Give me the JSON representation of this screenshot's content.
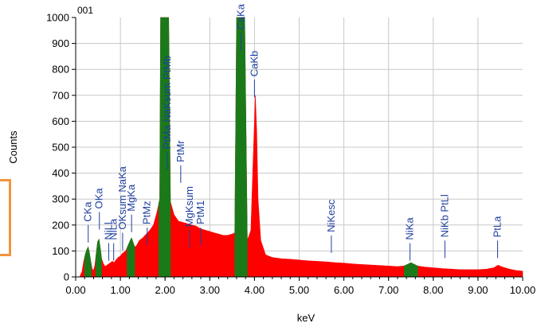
{
  "chart_data": {
    "type": "area",
    "sample_label": "001",
    "xlabel": "keV",
    "ylabel": "Counts",
    "xlim": [
      0,
      10
    ],
    "ylim": [
      0,
      1000
    ],
    "x_ticks": [
      "0.00",
      "1.00",
      "2.00",
      "3.00",
      "4.00",
      "5.00",
      "6.00",
      "7.00",
      "8.00",
      "9.00",
      "10.00"
    ],
    "y_ticks": [
      "0",
      "100",
      "200",
      "300",
      "400",
      "500",
      "600",
      "700",
      "800",
      "900",
      "1000"
    ],
    "spectrum_colors": {
      "background": "#ff0000",
      "identified": "#1a7a1a"
    },
    "spectrum_points": [
      [
        0.1,
        5
      ],
      [
        0.14,
        20
      ],
      [
        0.18,
        60
      ],
      [
        0.22,
        90
      ],
      [
        0.25,
        105
      ],
      [
        0.28,
        115
      ],
      [
        0.31,
        90
      ],
      [
        0.34,
        55
      ],
      [
        0.37,
        30
      ],
      [
        0.4,
        25
      ],
      [
        0.43,
        45
      ],
      [
        0.46,
        90
      ],
      [
        0.49,
        135
      ],
      [
        0.52,
        145
      ],
      [
        0.55,
        110
      ],
      [
        0.58,
        70
      ],
      [
        0.62,
        50
      ],
      [
        0.66,
        40
      ],
      [
        0.7,
        45
      ],
      [
        0.74,
        50
      ],
      [
        0.78,
        55
      ],
      [
        0.82,
        60
      ],
      [
        0.86,
        55
      ],
      [
        0.9,
        65
      ],
      [
        0.95,
        75
      ],
      [
        1.0,
        80
      ],
      [
        1.04,
        90
      ],
      [
        1.08,
        95
      ],
      [
        1.12,
        100
      ],
      [
        1.17,
        120
      ],
      [
        1.22,
        140
      ],
      [
        1.25,
        150
      ],
      [
        1.28,
        135
      ],
      [
        1.32,
        115
      ],
      [
        1.36,
        120
      ],
      [
        1.42,
        140
      ],
      [
        1.5,
        150
      ],
      [
        1.58,
        165
      ],
      [
        1.66,
        180
      ],
      [
        1.74,
        200
      ],
      [
        1.82,
        250
      ],
      [
        1.88,
        300
      ],
      [
        1.9,
        1000
      ],
      [
        2.0,
        1000
      ],
      [
        2.08,
        1000
      ],
      [
        2.12,
        290
      ],
      [
        2.2,
        240
      ],
      [
        2.3,
        215
      ],
      [
        2.4,
        210
      ],
      [
        2.5,
        205
      ],
      [
        2.6,
        200
      ],
      [
        2.7,
        195
      ],
      [
        2.8,
        185
      ],
      [
        2.9,
        180
      ],
      [
        3.0,
        175
      ],
      [
        3.1,
        170
      ],
      [
        3.2,
        165
      ],
      [
        3.3,
        160
      ],
      [
        3.4,
        160
      ],
      [
        3.5,
        165
      ],
      [
        3.56,
        170
      ],
      [
        3.6,
        1000
      ],
      [
        3.7,
        1000
      ],
      [
        3.78,
        1000
      ],
      [
        3.84,
        140
      ],
      [
        3.92,
        180
      ],
      [
        3.96,
        400
      ],
      [
        4.0,
        600
      ],
      [
        4.02,
        700
      ],
      [
        4.05,
        560
      ],
      [
        4.08,
        300
      ],
      [
        4.14,
        140
      ],
      [
        4.25,
        85
      ],
      [
        4.4,
        75
      ],
      [
        4.6,
        70
      ],
      [
        4.8,
        68
      ],
      [
        5.0,
        65
      ],
      [
        5.2,
        62
      ],
      [
        5.4,
        60
      ],
      [
        5.6,
        58
      ],
      [
        5.8,
        55
      ],
      [
        6.0,
        53
      ],
      [
        6.2,
        50
      ],
      [
        6.4,
        48
      ],
      [
        6.6,
        46
      ],
      [
        6.8,
        44
      ],
      [
        7.0,
        42
      ],
      [
        7.2,
        40
      ],
      [
        7.35,
        42
      ],
      [
        7.45,
        50
      ],
      [
        7.5,
        55
      ],
      [
        7.55,
        50
      ],
      [
        7.65,
        42
      ],
      [
        7.8,
        38
      ],
      [
        8.0,
        35
      ],
      [
        8.2,
        32
      ],
      [
        8.4,
        30
      ],
      [
        8.6,
        28
      ],
      [
        8.8,
        28
      ],
      [
        9.0,
        28
      ],
      [
        9.2,
        30
      ],
      [
        9.35,
        35
      ],
      [
        9.45,
        45
      ],
      [
        9.55,
        38
      ],
      [
        9.7,
        30
      ],
      [
        9.85,
        25
      ],
      [
        10.0,
        22
      ]
    ],
    "identified_regions": [
      [
        0.2,
        0.35
      ],
      [
        0.45,
        0.58
      ],
      [
        1.15,
        1.32
      ],
      [
        1.86,
        2.12
      ],
      [
        3.56,
        3.84
      ],
      [
        7.35,
        7.65
      ]
    ],
    "peak_labels": [
      {
        "text": "CKa",
        "x": 0.28,
        "marker_y": 200,
        "rotate": true
      },
      {
        "text": "OKa",
        "x": 0.53,
        "marker_y": 250,
        "rotate": true
      },
      {
        "text": "NiLl",
        "x": 0.74,
        "marker_y": 130,
        "rotate": true
      },
      {
        "text": "NiLa",
        "x": 0.85,
        "marker_y": 130,
        "rotate": true
      },
      {
        "text": "OKsum NaKa",
        "x": 1.05,
        "marker_y": 170,
        "rotate": true
      },
      {
        "text": "MgKa",
        "x": 1.25,
        "marker_y": 240,
        "rotate": true
      },
      {
        "text": "PtMz",
        "x": 1.6,
        "marker_y": 190,
        "rotate": true
      },
      {
        "text": "PtMa NaKsum PtMb",
        "x": 2.05,
        "marker_y": 480,
        "rotate": true
      },
      {
        "text": "PtMr",
        "x": 2.35,
        "marker_y": 430,
        "rotate": true
      },
      {
        "text": "MgKsum",
        "x": 2.55,
        "marker_y": 180,
        "rotate": true
      },
      {
        "text": "PtM1",
        "x": 2.8,
        "marker_y": 190,
        "rotate": true
      },
      {
        "text": "CaKa",
        "x": 3.7,
        "marker_y": 940,
        "rotate": true
      },
      {
        "text": "CaKb",
        "x": 4.0,
        "marker_y": 760,
        "rotate": true
      },
      {
        "text": "NiKesc",
        "x": 5.72,
        "marker_y": 160,
        "rotate": true
      },
      {
        "text": "NiKa",
        "x": 7.48,
        "marker_y": 130,
        "rotate": true
      },
      {
        "text": "NiKb PtLl",
        "x": 8.26,
        "marker_y": 140,
        "rotate": true
      },
      {
        "text": "PtLa",
        "x": 9.44,
        "marker_y": 140,
        "rotate": true
      }
    ],
    "grid": true,
    "legend": "none"
  }
}
